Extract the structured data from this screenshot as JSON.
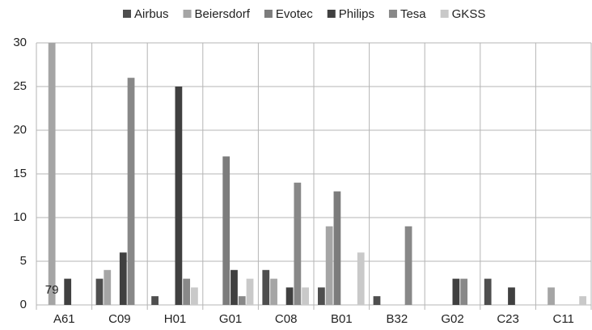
{
  "chart_data": {
    "type": "bar",
    "categories": [
      "A61",
      "C09",
      "H01",
      "G01",
      "C08",
      "B01",
      "B32",
      "G02",
      "C23",
      "C11"
    ],
    "series": [
      {
        "name": "Airbus",
        "color": "#4e4e4e",
        "values": [
          0,
          3,
          1,
          0,
          4,
          2,
          1,
          0,
          3,
          0
        ]
      },
      {
        "name": "Beiersdorf",
        "color": "#a5a5a5",
        "values": [
          79,
          4,
          0,
          0,
          3,
          9,
          0,
          0,
          0,
          2
        ],
        "value_labels": [
          "79",
          null,
          null,
          null,
          null,
          null,
          null,
          null,
          null,
          null
        ]
      },
      {
        "name": "Evotec",
        "color": "#7c7c7c",
        "values": [
          0,
          0,
          0,
          17,
          0,
          13,
          0,
          0,
          0,
          0
        ]
      },
      {
        "name": "Philips",
        "color": "#404040",
        "values": [
          3,
          6,
          25,
          4,
          2,
          0,
          0,
          3,
          2,
          0
        ]
      },
      {
        "name": "Tesa",
        "color": "#888888",
        "values": [
          0,
          26,
          3,
          1,
          14,
          0,
          9,
          3,
          0,
          0
        ]
      },
      {
        "name": "GKSS",
        "color": "#c9c9c9",
        "values": [
          0,
          0,
          2,
          3,
          2,
          6,
          0,
          0,
          0,
          1
        ]
      }
    ],
    "ylim": [
      0,
      30
    ],
    "yticks": [
      0,
      5,
      10,
      15,
      20,
      25,
      30
    ],
    "grid": true,
    "legend": "top"
  }
}
